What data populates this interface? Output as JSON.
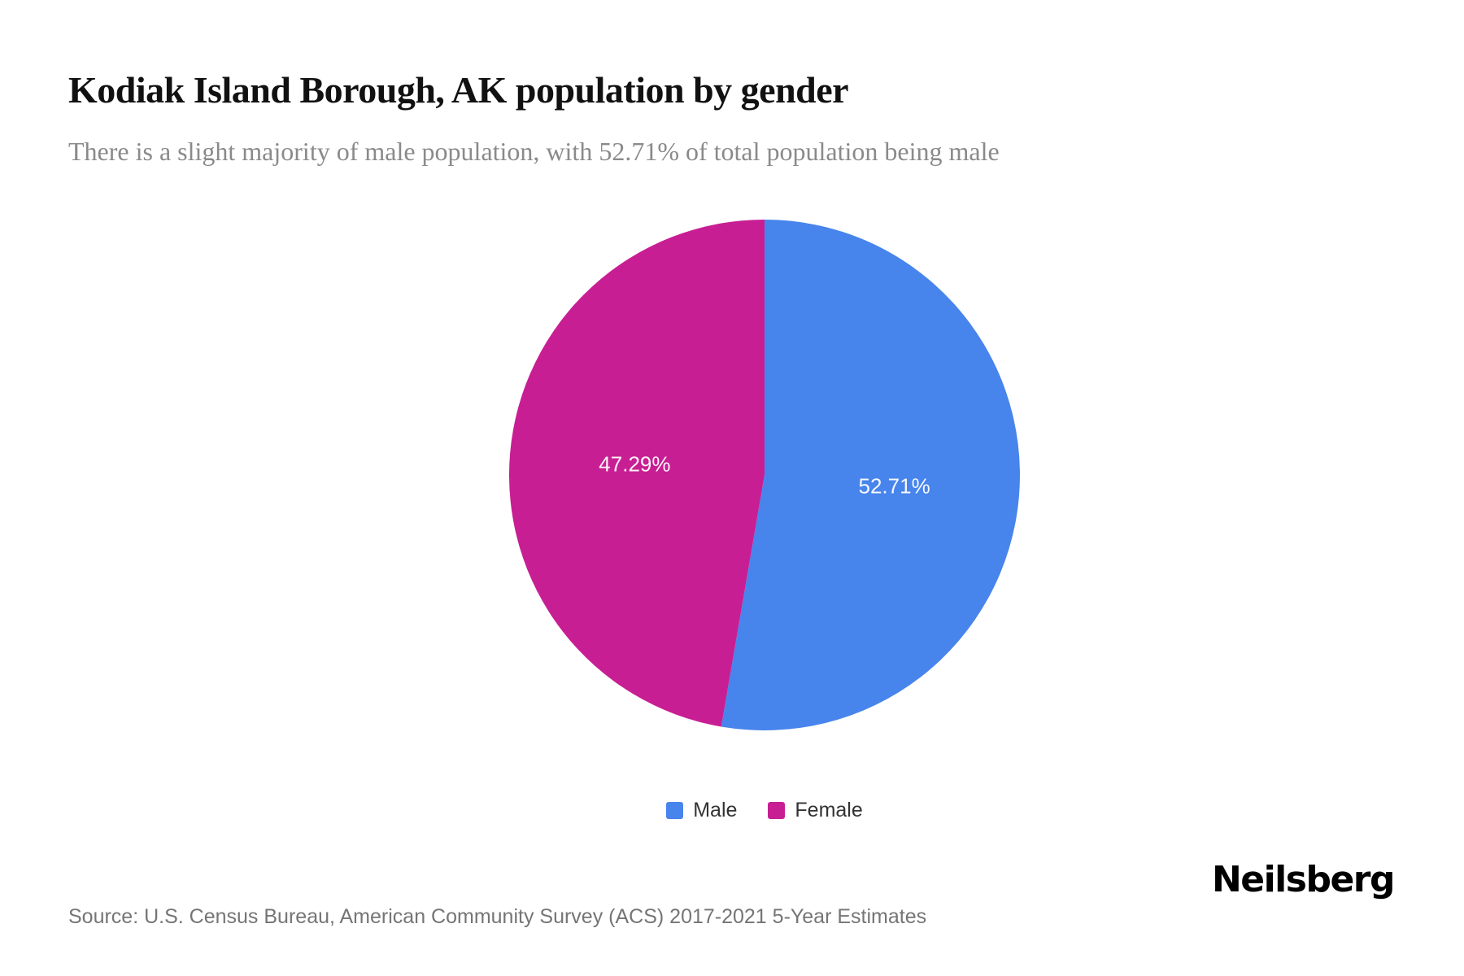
{
  "header": {
    "title": "Kodiak Island Borough, AK population by gender",
    "subtitle": "There is a slight majority of male population, with 52.71% of total population being male"
  },
  "chart_data": {
    "type": "pie",
    "title": "Kodiak Island Borough, AK population by gender",
    "labels": [
      "Male",
      "Female"
    ],
    "values": [
      52.71,
      47.29
    ],
    "value_labels": [
      "52.71%",
      "47.29%"
    ],
    "colors": [
      "#4784EC",
      "#C81E94"
    ],
    "slice_label_color": "#f7f7f7",
    "start_angle_deg": 0,
    "direction": "clockwise",
    "legend_position": "bottom"
  },
  "footer": {
    "source": "Source: U.S. Census Bureau, American Community Survey (ACS) 2017-2021 5-Year Estimates",
    "brand": "Neilsberg"
  }
}
